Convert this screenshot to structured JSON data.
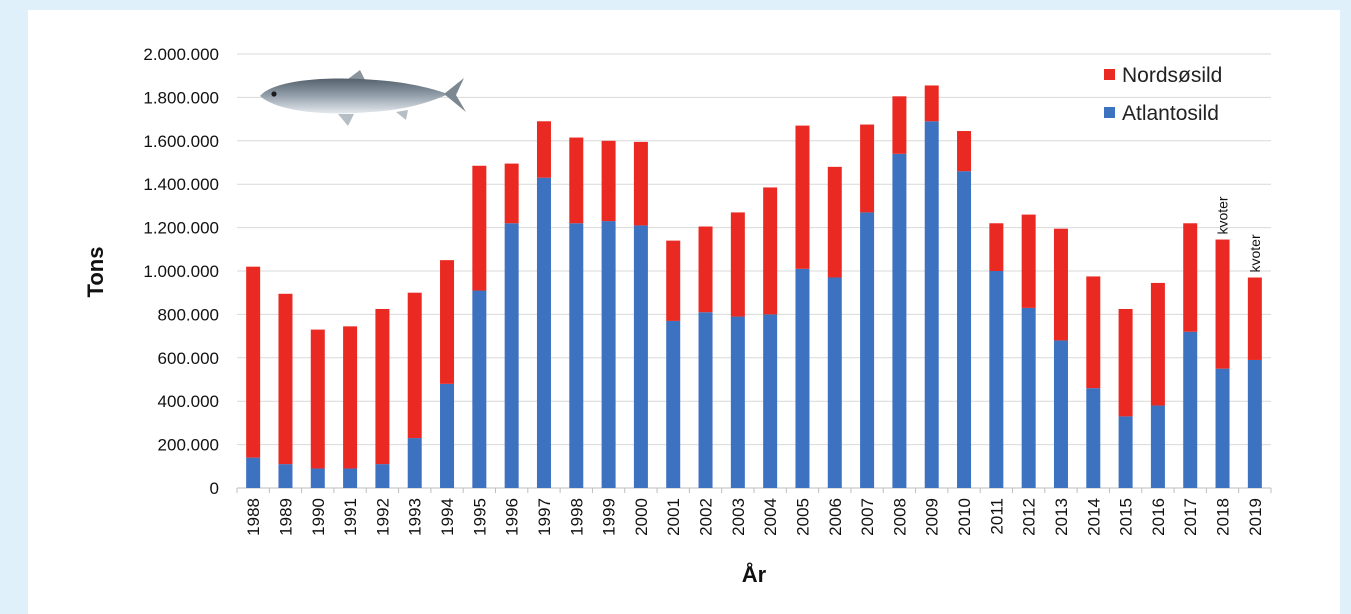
{
  "chart_data": {
    "type": "bar",
    "stacked": true,
    "categories": [
      "1988",
      "1989",
      "1990",
      "1991",
      "1992",
      "1993",
      "1994",
      "1995",
      "1996",
      "1997",
      "1998",
      "1999",
      "2000",
      "2001",
      "2002",
      "2003",
      "2004",
      "2005",
      "2006",
      "2007",
      "2008",
      "2009",
      "2010",
      "2011",
      "2012",
      "2013",
      "2014",
      "2015",
      "2016",
      "2017",
      "2018",
      "2019"
    ],
    "series": [
      {
        "name": "Atlantosild",
        "color": "#3d72c0",
        "values": [
          140000,
          110000,
          90000,
          90000,
          110000,
          230000,
          480000,
          910000,
          1220000,
          1430000,
          1220000,
          1230000,
          1210000,
          770000,
          810000,
          790000,
          800000,
          1010000,
          970000,
          1270000,
          1540000,
          1690000,
          1460000,
          1000000,
          830000,
          680000,
          460000,
          330000,
          380000,
          720000,
          550000,
          590000
        ]
      },
      {
        "name": "Nordsøsild",
        "color": "#ea2a22",
        "values": [
          880000,
          785000,
          640000,
          655000,
          715000,
          670000,
          570000,
          575000,
          275000,
          260000,
          395000,
          370000,
          385000,
          370000,
          395000,
          480000,
          585000,
          660000,
          510000,
          405000,
          265000,
          165000,
          185000,
          220000,
          430000,
          515000,
          515000,
          495000,
          565000,
          500000,
          595000,
          380000
        ]
      }
    ],
    "xlabel": "År",
    "ylabel": "Tons",
    "ylim": [
      0,
      2000000
    ],
    "yticks": [
      "0",
      "200.000",
      "400.000",
      "600.000",
      "800.000",
      "1.000.000",
      "1.200.000",
      "1.400.000",
      "1.600.000",
      "1.800.000",
      "2.000.000"
    ],
    "grid": true,
    "legend_position": "top-right",
    "annotations": [
      {
        "category": "2018",
        "text": "kvoter"
      },
      {
        "category": "2019",
        "text": "kvoter"
      }
    ]
  },
  "illustration": {
    "icon": "herring-fish-icon"
  }
}
